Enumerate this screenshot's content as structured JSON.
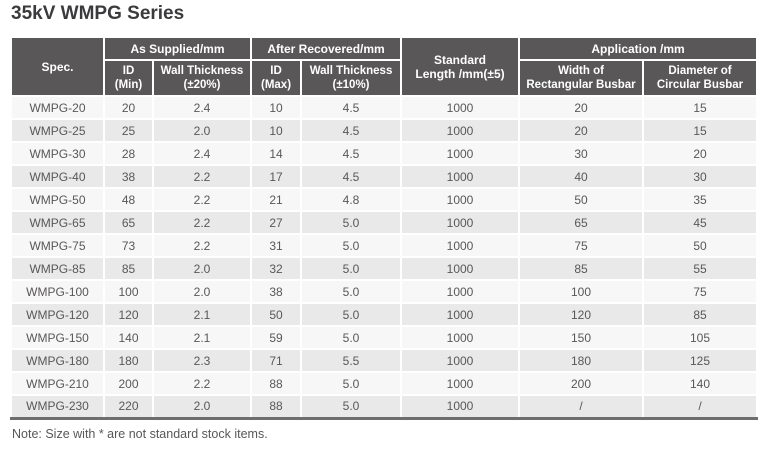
{
  "title": "35kV WMPG Series",
  "note": "Note: Size with * are not standard stock items.",
  "colors": {
    "header_bg": "#595757",
    "row_odd": "#f7f7f7",
    "row_even": "#e9e9e9",
    "body_text": "#595757",
    "title_text": "#3b3b3d",
    "bottom_border": "#6e6e6e"
  },
  "table": {
    "header": {
      "spec": "Spec.",
      "as_supplied": "As Supplied/mm",
      "after_recovered": "After Recovered/mm",
      "standard_length_line1": "Standard",
      "standard_length_line2": "Length /mm(±5)",
      "application": "Application /mm",
      "id_min_line1": "ID",
      "id_min_line2": "(Min)",
      "wall_20_line1": "Wall Thickness",
      "wall_20_line2": "(±20%)",
      "id_max_line1": "ID",
      "id_max_line2": "(Max)",
      "wall_10_line1": "Wall Thickness",
      "wall_10_line2": "(±10%)",
      "width_rect_line1": "Width of",
      "width_rect_line2": "Rectangular Busbar",
      "diam_circ_line1": "Diameter of",
      "diam_circ_line2": "Circular Busbar"
    },
    "rows": [
      [
        "WMPG-20",
        "20",
        "2.4",
        "10",
        "4.5",
        "1000",
        "20",
        "15"
      ],
      [
        "WMPG-25",
        "25",
        "2.0",
        "10",
        "4.5",
        "1000",
        "20",
        "15"
      ],
      [
        "WMPG-30",
        "28",
        "2.4",
        "14",
        "4.5",
        "1000",
        "30",
        "20"
      ],
      [
        "WMPG-40",
        "38",
        "2.2",
        "17",
        "4.5",
        "1000",
        "40",
        "30"
      ],
      [
        "WMPG-50",
        "48",
        "2.2",
        "21",
        "4.8",
        "1000",
        "50",
        "35"
      ],
      [
        "WMPG-65",
        "65",
        "2.2",
        "27",
        "5.0",
        "1000",
        "65",
        "45"
      ],
      [
        "WMPG-75",
        "73",
        "2.2",
        "31",
        "5.0",
        "1000",
        "75",
        "50"
      ],
      [
        "WMPG-85",
        "85",
        "2.0",
        "32",
        "5.0",
        "1000",
        "85",
        "55"
      ],
      [
        "WMPG-100",
        "100",
        "2.0",
        "38",
        "5.0",
        "1000",
        "100",
        "75"
      ],
      [
        "WMPG-120",
        "120",
        "2.1",
        "50",
        "5.0",
        "1000",
        "120",
        "85"
      ],
      [
        "WMPG-150",
        "140",
        "2.1",
        "59",
        "5.0",
        "1000",
        "150",
        "105"
      ],
      [
        "WMPG-180",
        "180",
        "2.3",
        "71",
        "5.5",
        "1000",
        "180",
        "125"
      ],
      [
        "WMPG-210",
        "200",
        "2.2",
        "88",
        "5.0",
        "1000",
        "200",
        "140"
      ],
      [
        "WMPG-230",
        "220",
        "2.0",
        "88",
        "5.0",
        "1000",
        "/",
        "/"
      ]
    ]
  }
}
